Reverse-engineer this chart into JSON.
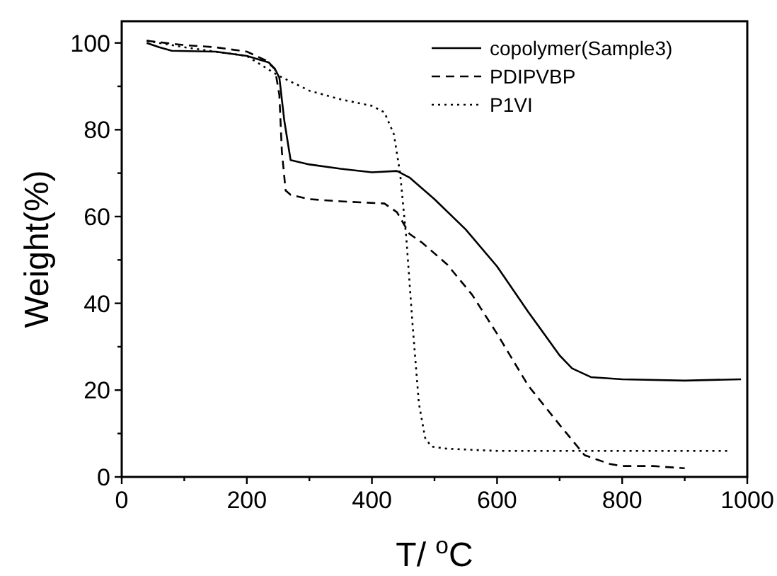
{
  "chart_data": {
    "type": "line",
    "xlabel": "T/ $^{o}$C",
    "ylabel": "Weight(%)",
    "xlim": [
      0,
      1000
    ],
    "ylim": [
      0,
      105
    ],
    "xticks": [
      0,
      {
        "value": 100,
        "label": null
      },
      200,
      {
        "value": 300,
        "label": null
      },
      400,
      {
        "value": 500,
        "label": null
      },
      600,
      {
        "value": 700,
        "label": null
      },
      800,
      {
        "value": 900,
        "label": null
      },
      1000
    ],
    "yticks": [
      0,
      {
        "value": 10,
        "label": null
      },
      20,
      {
        "value": 30,
        "label": null
      },
      40,
      {
        "value": 50,
        "label": null
      },
      60,
      {
        "value": 70,
        "label": null
      },
      80,
      {
        "value": 90,
        "label": null
      },
      100
    ],
    "legend": "top right",
    "grid": false,
    "series": [
      {
        "name": "copolymer(Sample3)",
        "color": "#000000",
        "line_style": "solid",
        "x": [
          40,
          60,
          80,
          150,
          200,
          235,
          245,
          252,
          260,
          270,
          300,
          350,
          400,
          440,
          460,
          500,
          550,
          600,
          650,
          700,
          720,
          750,
          800,
          900,
          990
        ],
        "values": [
          100,
          99,
          98.2,
          98,
          97,
          95.5,
          94,
          92,
          82,
          73,
          72,
          71,
          70.2,
          70.5,
          69,
          64,
          57,
          48.5,
          38,
          28,
          25,
          23,
          22.5,
          22.2,
          22.5
        ]
      },
      {
        "name": "PDIPVBP",
        "color": "#000000",
        "line_style": "dashed",
        "x": [
          40,
          100,
          150,
          200,
          230,
          245,
          252,
          256,
          262,
          270,
          300,
          350,
          420,
          440,
          460,
          480,
          520,
          560,
          600,
          650,
          700,
          740,
          780,
          800,
          850,
          900
        ],
        "values": [
          100.5,
          99.5,
          99,
          98,
          96,
          94,
          88,
          75,
          66,
          65,
          64,
          63.5,
          63,
          61,
          56,
          54,
          49,
          42,
          33,
          21,
          12,
          5,
          3,
          2.5,
          2.5,
          2
        ]
      },
      {
        "name": "P1VI",
        "color": "#000000",
        "line_style": "dotted",
        "x": [
          40,
          100,
          150,
          200,
          250,
          300,
          350,
          400,
          420,
          435,
          445,
          455,
          465,
          475,
          485,
          495,
          520,
          600,
          800,
          970
        ],
        "values": [
          100.5,
          99,
          98,
          97,
          92.5,
          89,
          87,
          85.5,
          84,
          79,
          70,
          55,
          35,
          17,
          9,
          7,
          6.5,
          6,
          6,
          6
        ]
      }
    ]
  }
}
